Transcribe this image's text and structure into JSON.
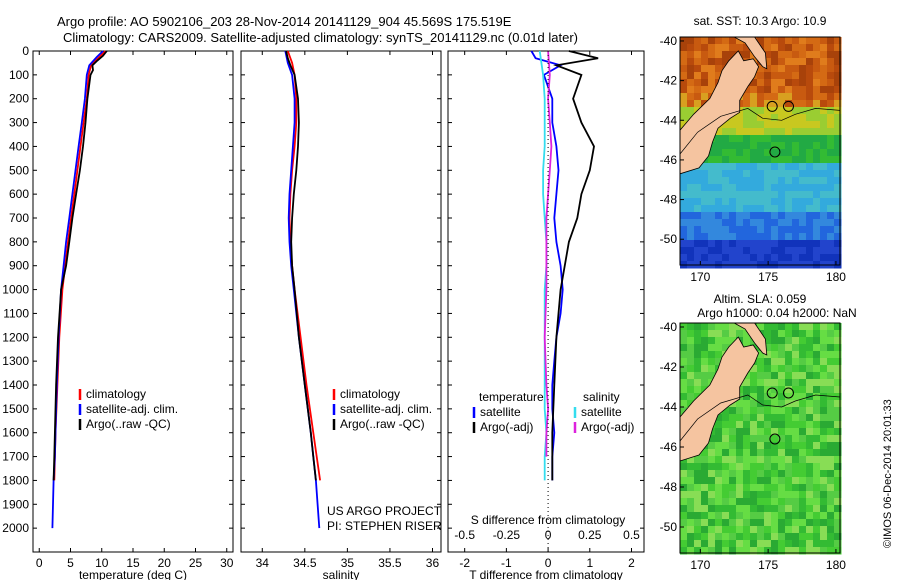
{
  "header": {
    "title_line1": "Argo profile: AO 5902106_203 28-Nov-2014 20141129_904 45.569S 175.519E",
    "title_line2": "Climatology: CARS2009. Satellite-adjusted climatology: synTS_20141129.nc (0.01d later)"
  },
  "colors": {
    "climatology": "#ff0000",
    "satellite": "#0000ff",
    "argo": "#000000",
    "s_satellite": "#33ddee",
    "s_argo": "#dd22dd",
    "land": "#f5c4a0"
  },
  "chart_data": [
    {
      "type": "line",
      "name": "temperature-profile",
      "xlabel": "temperature (deg C)",
      "xlim": [
        -1,
        31
      ],
      "ylim": [
        2100,
        0
      ],
      "xticks": [
        "0",
        "5",
        "10",
        "15",
        "20",
        "25",
        "30"
      ],
      "yticks": [
        "0",
        "100",
        "200",
        "300",
        "400",
        "500",
        "600",
        "700",
        "800",
        "900",
        "1000",
        "1100",
        "1200",
        "1300",
        "1400",
        "1500",
        "1600",
        "1700",
        "1800",
        "1900",
        "2000"
      ],
      "legend": [
        "climatology",
        "satellite-adj. clim.",
        "Argo(..raw -QC)"
      ],
      "series": [
        {
          "name": "climatology",
          "x": [
            10.6,
            9.6,
            8.3,
            7.9,
            7.6,
            7.1,
            6.6,
            6.1,
            5.6,
            5.1,
            4.6,
            3.7,
            3.2,
            2.9,
            2.6,
            2.5,
            2.4
          ],
          "y": [
            0,
            25,
            60,
            100,
            200,
            300,
            400,
            500,
            600,
            700,
            800,
            1000,
            1200,
            1400,
            1600,
            1700,
            1800
          ]
        },
        {
          "name": "satellite",
          "x": [
            10.2,
            9.2,
            8.0,
            7.6,
            7.3,
            6.8,
            6.3,
            5.8,
            5.3,
            4.8,
            4.3,
            3.5,
            3.1,
            2.8,
            2.6,
            2.5,
            2.3,
            2.2,
            2.1
          ],
          "y": [
            0,
            25,
            60,
            100,
            200,
            300,
            400,
            500,
            600,
            700,
            800,
            1000,
            1200,
            1400,
            1600,
            1700,
            1800,
            1900,
            2000
          ]
        },
        {
          "name": "argo",
          "x": [
            10.8,
            10.2,
            9.3,
            8.5,
            8.6,
            8.2,
            7.7,
            7.4,
            7.0,
            6.5,
            5.9,
            5.3,
            4.8,
            4.3,
            3.5,
            3.0,
            2.7,
            2.5,
            2.4,
            2.3
          ],
          "y": [
            0,
            20,
            40,
            60,
            80,
            100,
            200,
            300,
            400,
            500,
            600,
            700,
            800,
            900,
            1000,
            1200,
            1400,
            1600,
            1700,
            1800
          ]
        }
      ]
    },
    {
      "type": "line",
      "name": "salinity-profile",
      "xlabel": "salinity",
      "xlim": [
        33.75,
        36.1
      ],
      "ylim": [
        2100,
        0
      ],
      "xticks": [
        "34",
        "34.5",
        "35",
        "35.5",
        "36"
      ],
      "legend": [
        "climatology",
        "satellite-adj. clim.",
        "Argo(..raw -QC)"
      ],
      "annotation_line1": "US ARGO PROJECT",
      "annotation_line2": "PI: STEPHEN RISER",
      "series": [
        {
          "name": "climatology",
          "x": [
            34.3,
            34.35,
            34.38,
            34.4,
            34.4,
            34.38,
            34.35,
            34.33,
            34.32,
            34.33,
            34.35,
            34.38,
            34.45,
            34.52,
            34.6,
            34.64,
            34.68
          ],
          "y": [
            0,
            50,
            100,
            200,
            300,
            400,
            500,
            600,
            700,
            800,
            900,
            1000,
            1200,
            1400,
            1600,
            1700,
            1800
          ]
        },
        {
          "name": "satellite",
          "x": [
            34.27,
            34.3,
            34.35,
            34.38,
            34.38,
            34.36,
            34.34,
            34.32,
            34.31,
            34.32,
            34.34,
            34.37,
            34.43,
            34.5,
            34.57,
            34.6,
            34.63,
            34.65,
            34.67
          ],
          "y": [
            0,
            50,
            100,
            200,
            300,
            400,
            500,
            600,
            700,
            800,
            900,
            1000,
            1200,
            1400,
            1600,
            1700,
            1800,
            1900,
            2000
          ]
        },
        {
          "name": "argo",
          "x": [
            34.28,
            34.3,
            34.33,
            34.38,
            34.42,
            34.43,
            34.42,
            34.4,
            34.37,
            34.35,
            34.34,
            34.35,
            34.38,
            34.43,
            34.5,
            34.57,
            34.6,
            34.63
          ],
          "y": [
            0,
            30,
            60,
            100,
            200,
            300,
            400,
            500,
            600,
            700,
            800,
            900,
            1000,
            1200,
            1400,
            1600,
            1700,
            1800
          ]
        }
      ]
    },
    {
      "type": "line",
      "name": "difference-profile",
      "xlabel": "T difference from climatology",
      "xlabel_top": "S difference from climatology",
      "xlim": [
        -2.4,
        2.3
      ],
      "ylim": [
        2100,
        0
      ],
      "xticks": [
        "-2",
        "-1",
        "0",
        "1",
        "2"
      ],
      "xticks_s": [
        "-0.5",
        "-0.25",
        "0",
        "0.25",
        "0.5"
      ],
      "legend_header_t": "temperature",
      "legend_header_s": "salinity",
      "legend_t": [
        "satellite",
        "Argo(-adj)"
      ],
      "legend_s": [
        "satellite",
        "Argo(-adj)"
      ],
      "series": [
        {
          "name": "t-satellite",
          "x": [
            -0.4,
            -0.3,
            0.3,
            -0.1,
            0.1,
            0.1,
            0.2,
            0.25,
            0.2,
            0.15,
            0.2,
            0.3,
            0.35,
            0.3,
            0.2,
            0.15,
            0.1,
            0.1,
            0.15,
            0.1,
            0.1
          ],
          "y": [
            0,
            30,
            60,
            100,
            200,
            300,
            400,
            500,
            600,
            700,
            800,
            900,
            1000,
            1100,
            1200,
            1300,
            1400,
            1500,
            1600,
            1700,
            1800
          ]
        },
        {
          "name": "t-argo",
          "x": [
            0.5,
            1.2,
            0.2,
            0.8,
            0.6,
            0.8,
            1.1,
            1.0,
            0.8,
            0.7,
            0.5,
            0.3,
            0.2,
            0.15,
            0.1,
            0.1
          ],
          "y": [
            0,
            30,
            60,
            100,
            200,
            300,
            400,
            500,
            600,
            700,
            800,
            1000,
            1200,
            1400,
            1600,
            1800
          ]
        },
        {
          "name": "s-satellite",
          "x": [
            -0.05,
            -0.04,
            -0.03,
            -0.02,
            -0.02,
            -0.02,
            -0.03,
            -0.03,
            -0.02,
            -0.01,
            -0.01,
            -0.02,
            -0.02,
            -0.02,
            -0.02,
            -0.01,
            -0.02,
            -0.02
          ],
          "y": [
            0,
            50,
            100,
            200,
            300,
            400,
            500,
            600,
            700,
            800,
            900,
            1000,
            1200,
            1400,
            1500,
            1600,
            1700,
            1800
          ]
        },
        {
          "name": "s-argo",
          "x": [
            0.0,
            0.01,
            0.0,
            0.01,
            0.02,
            0.01,
            0.0,
            -0.01,
            -0.01,
            -0.01,
            -0.02,
            -0.01,
            0.0,
            -0.01,
            -0.01
          ],
          "y": [
            0,
            100,
            200,
            300,
            400,
            500,
            600,
            700,
            800,
            1000,
            1200,
            1400,
            1500,
            1600,
            1700
          ]
        }
      ]
    },
    {
      "type": "heatmap",
      "name": "sst-map",
      "title": "sat. SST: 10.3 Argo: 10.9",
      "xticks": [
        "170",
        "175",
        "180"
      ],
      "yticks": [
        "-40",
        "-42",
        "-44",
        "-46",
        "-48",
        "-50"
      ],
      "xlim": [
        168.5,
        180.3
      ],
      "ylim": [
        -51.3,
        -39.8
      ]
    },
    {
      "type": "heatmap",
      "name": "sla-map",
      "title_line1": "Altim. SLA: 0.059",
      "title_line2": "Argo h1000: 0.04 h2000: NaN",
      "xticks": [
        "170",
        "175",
        "180"
      ],
      "yticks": [
        "-40",
        "-42",
        "-44",
        "-46",
        "-48",
        "-50"
      ],
      "xlim": [
        168.5,
        180.3
      ],
      "ylim": [
        -51.3,
        -39.8
      ]
    }
  ],
  "credit": "©IMOS 06-Dec-2014 20:01:33"
}
